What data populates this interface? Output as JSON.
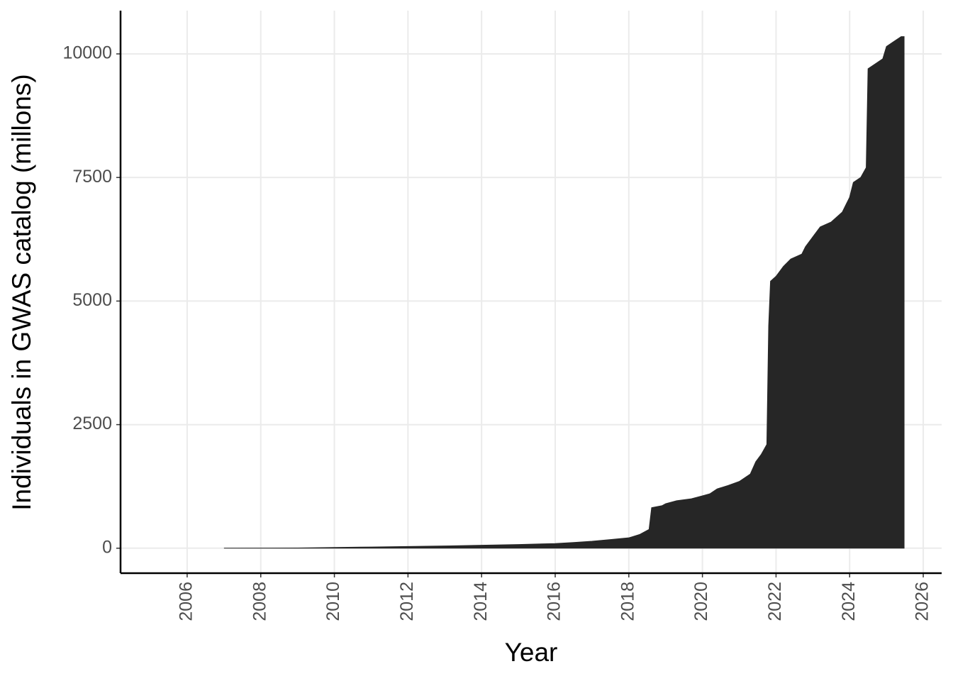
{
  "chart_data": {
    "type": "area",
    "xlabel": "Year",
    "ylabel": "Individuals in GWAS catalog (millons)",
    "color": "#262626",
    "x": [
      2007.0,
      2009.0,
      2010.0,
      2011.0,
      2012.0,
      2013.0,
      2014.0,
      2015.0,
      2016.0,
      2016.5,
      2017.0,
      2017.5,
      2018.0,
      2018.3,
      2018.55,
      2018.62,
      2018.9,
      2019.0,
      2019.3,
      2019.7,
      2020.0,
      2020.2,
      2020.4,
      2020.7,
      2021.0,
      2021.3,
      2021.45,
      2021.6,
      2021.75,
      2021.8,
      2021.85,
      2022.0,
      2022.2,
      2022.4,
      2022.7,
      2022.8,
      2023.0,
      2023.2,
      2023.5,
      2023.8,
      2023.9,
      2024.0,
      2024.1,
      2024.3,
      2024.45,
      2024.5,
      2024.7,
      2024.9,
      2025.0,
      2025.2,
      2025.4,
      2025.48
    ],
    "values": [
      0,
      5,
      15,
      25,
      35,
      45,
      60,
      75,
      95,
      115,
      140,
      175,
      210,
      280,
      380,
      820,
      860,
      900,
      960,
      1000,
      1060,
      1100,
      1200,
      1270,
      1350,
      1500,
      1750,
      1900,
      2100,
      4500,
      5400,
      5500,
      5700,
      5850,
      5950,
      6100,
      6300,
      6500,
      6600,
      6800,
      6950,
      7100,
      7400,
      7500,
      7700,
      9700,
      9800,
      9900,
      10150,
      10250,
      10350,
      10350
    ],
    "xlim": [
      2004.19,
      2026.5
    ],
    "xticks": [
      2006,
      2008,
      2010,
      2012,
      2014,
      2016,
      2018,
      2020,
      2022,
      2024,
      2026
    ],
    "ylim": [
      -505,
      10875
    ],
    "yticks": [
      0,
      2500,
      5000,
      7500,
      10000
    ],
    "grid": true
  }
}
